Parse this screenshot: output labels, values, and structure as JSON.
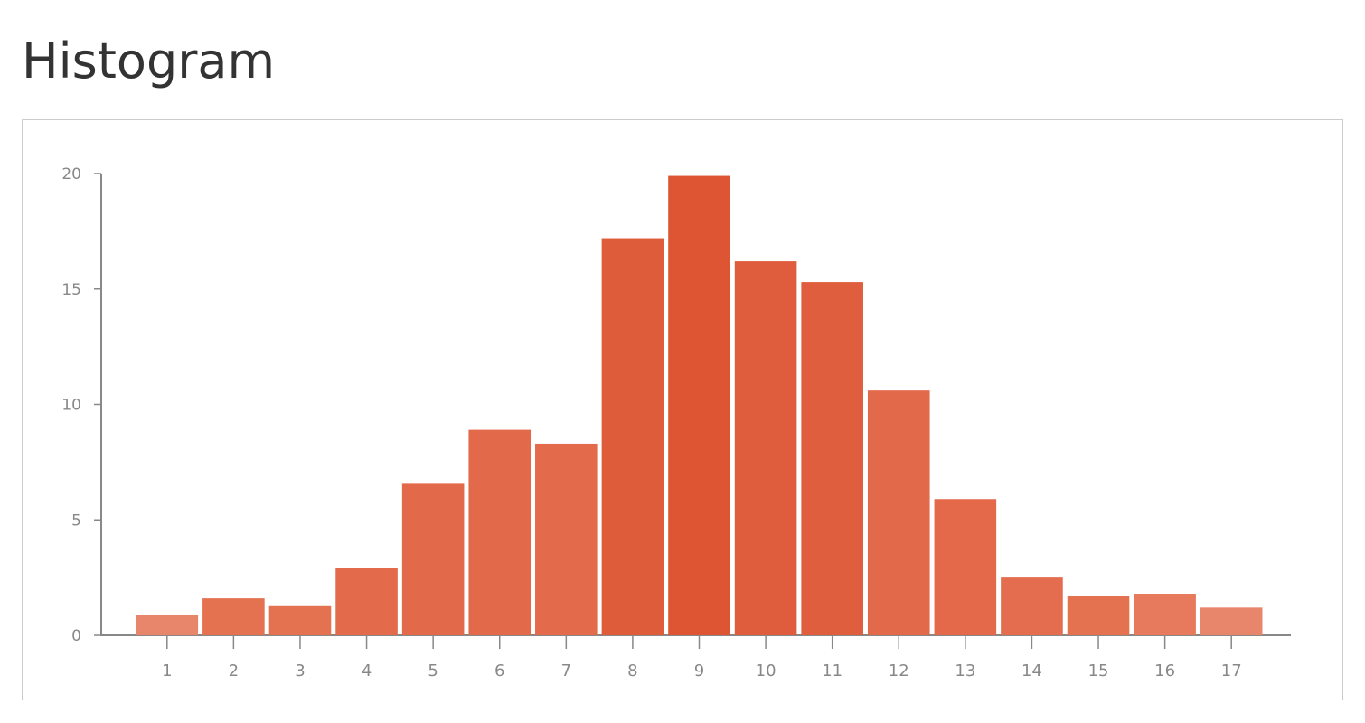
{
  "chart_data": {
    "type": "bar",
    "title": "Histogram",
    "categories": [
      "1",
      "2",
      "3",
      "4",
      "5",
      "6",
      "7",
      "8",
      "9",
      "10",
      "11",
      "12",
      "13",
      "14",
      "15",
      "16",
      "17"
    ],
    "values": [
      0.9,
      1.6,
      1.3,
      2.9,
      6.6,
      8.9,
      8.3,
      17.2,
      19.9,
      16.2,
      15.3,
      10.6,
      5.9,
      2.5,
      1.7,
      1.8,
      1.2
    ],
    "colors": [
      "#e8866b",
      "#e4714f",
      "#e4714f",
      "#e36a4b",
      "#e2694a",
      "#e2694a",
      "#e36b4c",
      "#df5c3b",
      "#dd5533",
      "#df5d3c",
      "#df5e3d",
      "#e2694a",
      "#e3694a",
      "#e36d4e",
      "#e4714f",
      "#e77a5d",
      "#e8866b"
    ],
    "ylim": [
      0,
      20
    ],
    "yticks": [
      0,
      5,
      10,
      15,
      20
    ],
    "grid": false
  }
}
